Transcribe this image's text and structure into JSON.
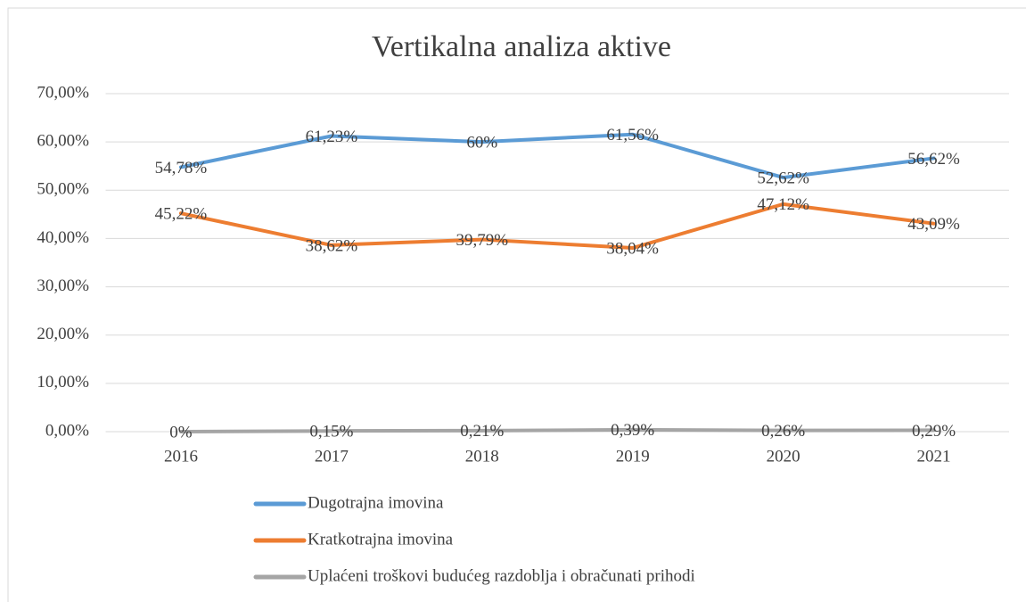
{
  "chart_data": {
    "type": "line",
    "title": "Vertikalna analiza aktive",
    "categories": [
      "2016",
      "2017",
      "2018",
      "2019",
      "2020",
      "2021"
    ],
    "series": [
      {
        "name": "Dugotrajna imovina",
        "color": "#5b9bd5",
        "values": [
          54.78,
          61.23,
          60,
          61.56,
          52.62,
          56.62
        ],
        "value_labels": [
          "54,78%",
          "61,23%",
          "60%",
          "61,56%",
          "52,62%",
          "56,62%"
        ]
      },
      {
        "name": "Kratkotrajna imovina",
        "color": "#ed7d31",
        "values": [
          45.22,
          38.62,
          39.79,
          38.04,
          47.12,
          43.09
        ],
        "value_labels": [
          "45,22%",
          "38,62%",
          "39,79%",
          "38,04%",
          "47,12%",
          "43,09%"
        ]
      },
      {
        "name": "Uplaćeni troškovi budućeg razdoblja i obračunati prihodi",
        "color": "#a5a5a5",
        "values": [
          0,
          0.15,
          0.21,
          0.39,
          0.26,
          0.29
        ],
        "value_labels": [
          "0%",
          "0,15%",
          "0,21%",
          "0,39%",
          "0,26%",
          "0,29%"
        ]
      }
    ],
    "ylim": [
      0,
      70
    ],
    "yticks": [
      {
        "value": 0,
        "label": "0,00%"
      },
      {
        "value": 10,
        "label": "10,00%"
      },
      {
        "value": 20,
        "label": "20,00%"
      },
      {
        "value": 30,
        "label": "30,00%"
      },
      {
        "value": 40,
        "label": "40,00%"
      },
      {
        "value": 50,
        "label": "50,00%"
      },
      {
        "value": 60,
        "label": "60,00%"
      },
      {
        "value": 70,
        "label": "70,00%"
      }
    ],
    "grid": true,
    "legend": "bottom"
  }
}
